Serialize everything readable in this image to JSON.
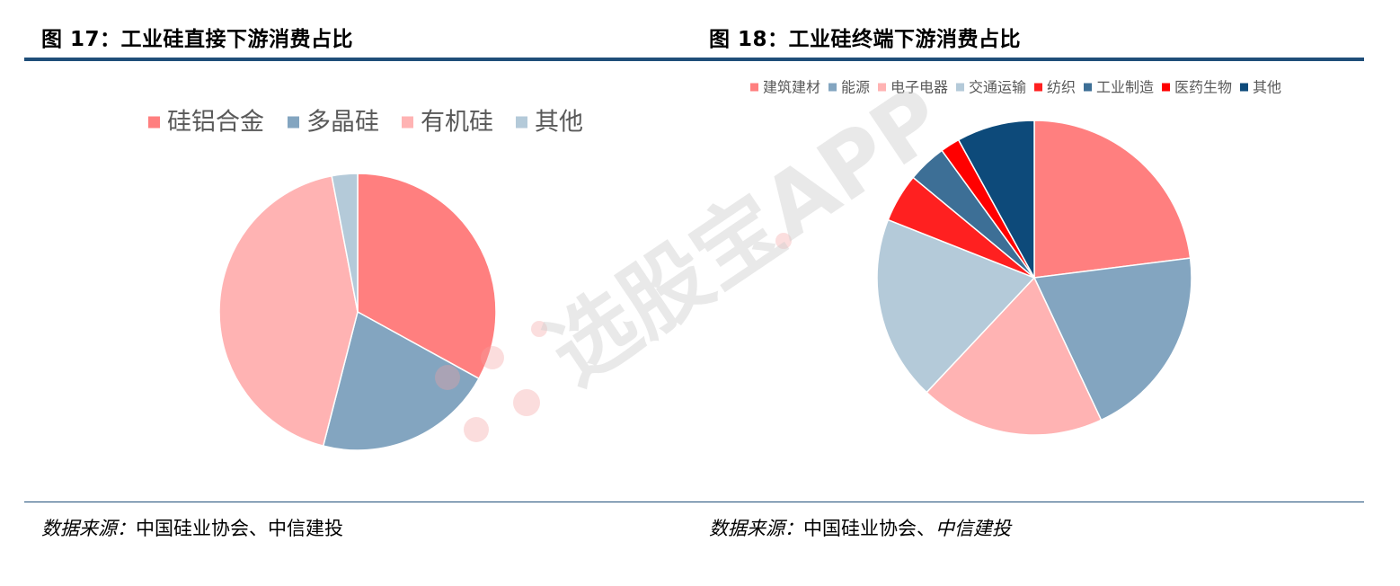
{
  "figures": [
    {
      "title": "图  17：工业硅直接下游消费占比",
      "source_label": "数据来源：",
      "source_text": "中国硅业协会、中信建投",
      "source_italic": "",
      "chart_data": {
        "type": "pie",
        "title": "",
        "legend_position": "top",
        "categories": [
          "硅铝合金",
          "多晶硅",
          "有机硅",
          "其他"
        ],
        "values": [
          33,
          21,
          43,
          3
        ],
        "colors": [
          "#ff7f7f",
          "#83a5c0",
          "#ffb3b3",
          "#b4cad9"
        ]
      }
    },
    {
      "title": "图  18：工业硅终端下游消费占比",
      "source_label": "数据来源：",
      "source_text": "中国硅业协会、",
      "source_italic": "中信建投",
      "chart_data": {
        "type": "pie",
        "title": "",
        "legend_position": "top",
        "categories": [
          "建筑建材",
          "能源",
          "电子电器",
          "交通运输",
          "纺织",
          "工业制造",
          "医药生物",
          "其他"
        ],
        "values": [
          23,
          20,
          19,
          19,
          5,
          4,
          2,
          8
        ],
        "colors": [
          "#ff7f7f",
          "#83a5c0",
          "#ffb3b3",
          "#b4cad9",
          "#ff2020",
          "#3d6f96",
          "#ff0000",
          "#0d4a7a"
        ]
      }
    }
  ],
  "watermark": {
    "text": "选股宝APP"
  }
}
